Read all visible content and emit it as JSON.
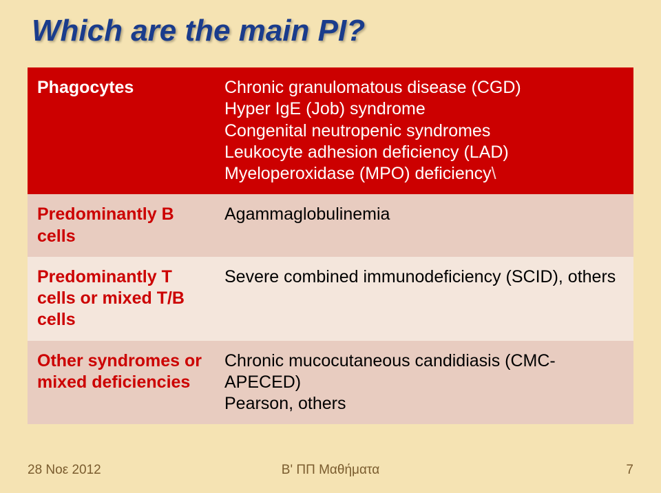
{
  "slide": {
    "background_color": "#f5e3b3",
    "title": "Which are the main PI?",
    "title_color": "#1a3c8c",
    "rows": [
      {
        "left": "Phagocytes",
        "right_lines": [
          "Chronic granulomatous disease (CGD)",
          "Hyper IgE (Job) syndrome",
          "Congenital neutropenic syndromes",
          "Leukocyte adhesion deficiency (LAD)",
          "Myeloperoxidase (MPO) deficiency"
        ],
        "trailing": "\\"
      },
      {
        "left": "Predominantly B cells",
        "right_lines": [
          "Agammaglobulinemia"
        ]
      },
      {
        "left": "Predominantly T cells or mixed T/B cells",
        "right_lines": [
          "Severe combined immunodeficiency (SCID), others"
        ]
      },
      {
        "left": "Other syndromes or mixed deficiencies",
        "right_lines": [
          "Chronic mucocutaneous candidiasis (CMC-APECED)",
          "Pearson, others"
        ]
      }
    ]
  },
  "footer": {
    "date": "28 Νοε 2012",
    "center": "B' ΠΠ Μαθήματα",
    "page": "7",
    "color": "#7a5c2e"
  }
}
